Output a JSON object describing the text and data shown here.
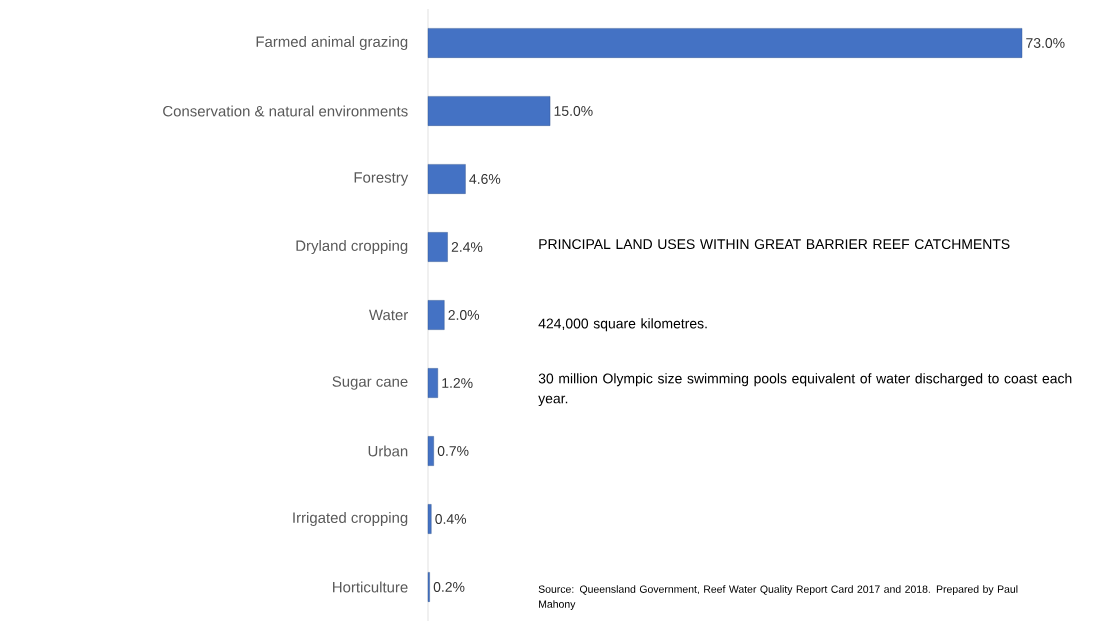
{
  "chart_data": {
    "type": "bar",
    "orientation": "horizontal",
    "title": "PRINCIPAL LAND USES WITHIN GREAT BARRIER REEF CATCHMENTS",
    "categories": [
      "Farmed animal grazing",
      "Conservation & natural environments",
      "Forestry",
      "Dryland cropping",
      "Water",
      "Sugar cane",
      "Urban",
      "Irrigated cropping",
      "Horticulture"
    ],
    "values": [
      73.0,
      15.0,
      4.6,
      2.4,
      2.0,
      1.2,
      0.7,
      0.4,
      0.2
    ],
    "value_labels": [
      "73.0%",
      "15.0%",
      "4.6%",
      "2.4%",
      "2.0%",
      "1.2%",
      "0.7%",
      "0.4%",
      "0.2%"
    ],
    "color": "#4472c4",
    "annotations": [
      "424,000 square kilometres.",
      "30 million Olympic size swimming pools equivalent of water discharged to coast each year.",
      "Source: Queensland Government, Reef Water Quality Report Card 2017 and 2018. Prepared by Paul Mahony"
    ]
  }
}
